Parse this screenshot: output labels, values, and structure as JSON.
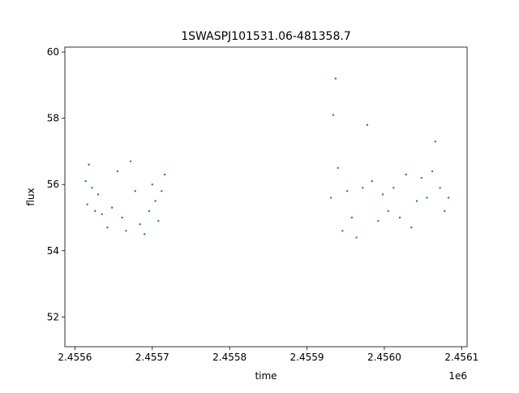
{
  "chart_data": {
    "type": "scatter",
    "title": "1SWASPJ101531.06-481358.7",
    "xlabel": "time",
    "ylabel": "flux",
    "x_offset_label": "1e6",
    "xlim": [
      2.455587,
      2.456107
    ],
    "ylim": [
      51.1,
      60.15
    ],
    "xticks": [
      2.4556,
      2.4557,
      2.4558,
      2.4559,
      2.456,
      2.4561
    ],
    "xtick_labels": [
      "2.4556",
      "2.4557",
      "2.4558",
      "2.4559",
      "2.4560",
      "2.4561"
    ],
    "yticks": [
      52,
      54,
      56,
      58,
      60
    ],
    "ytick_labels": [
      "52",
      "54",
      "56",
      "58",
      "60"
    ],
    "grid": false,
    "marker_color": "#1f77b4",
    "series": [
      {
        "x": [
          2.455614,
          2.455616,
          2.455618,
          2.455622,
          2.455626,
          2.45563,
          2.455635,
          2.455642,
          2.455648,
          2.455655,
          2.455661,
          2.455666,
          2.455672,
          2.455678,
          2.455684,
          2.45569,
          2.455696,
          2.4557,
          2.455704,
          2.455708,
          2.455712,
          2.455716,
          2.455931,
          2.455934,
          2.455937,
          2.45594,
          2.455946,
          2.455952,
          2.455958,
          2.455964,
          2.455972,
          2.455978,
          2.455984,
          2.455992,
          2.455998,
          2.456005,
          2.456012,
          2.45602,
          2.456028,
          2.456035,
          2.456042,
          2.456048,
          2.456055,
          2.456062,
          2.456066,
          2.456072,
          2.456078,
          2.456083
        ],
        "y": [
          56.1,
          55.4,
          56.6,
          55.9,
          55.2,
          55.7,
          55.1,
          54.7,
          55.3,
          56.4,
          55.0,
          54.6,
          56.7,
          55.8,
          54.8,
          54.5,
          55.2,
          56.0,
          55.5,
          54.9,
          55.8,
          56.3,
          55.6,
          58.1,
          59.2,
          56.5,
          54.6,
          55.8,
          55.0,
          54.4,
          55.9,
          57.8,
          56.1,
          54.9,
          55.7,
          55.2,
          55.9,
          55.0,
          56.3,
          54.7,
          55.5,
          56.2,
          55.6,
          56.4,
          57.3,
          55.9,
          55.2,
          55.6
        ]
      }
    ]
  }
}
